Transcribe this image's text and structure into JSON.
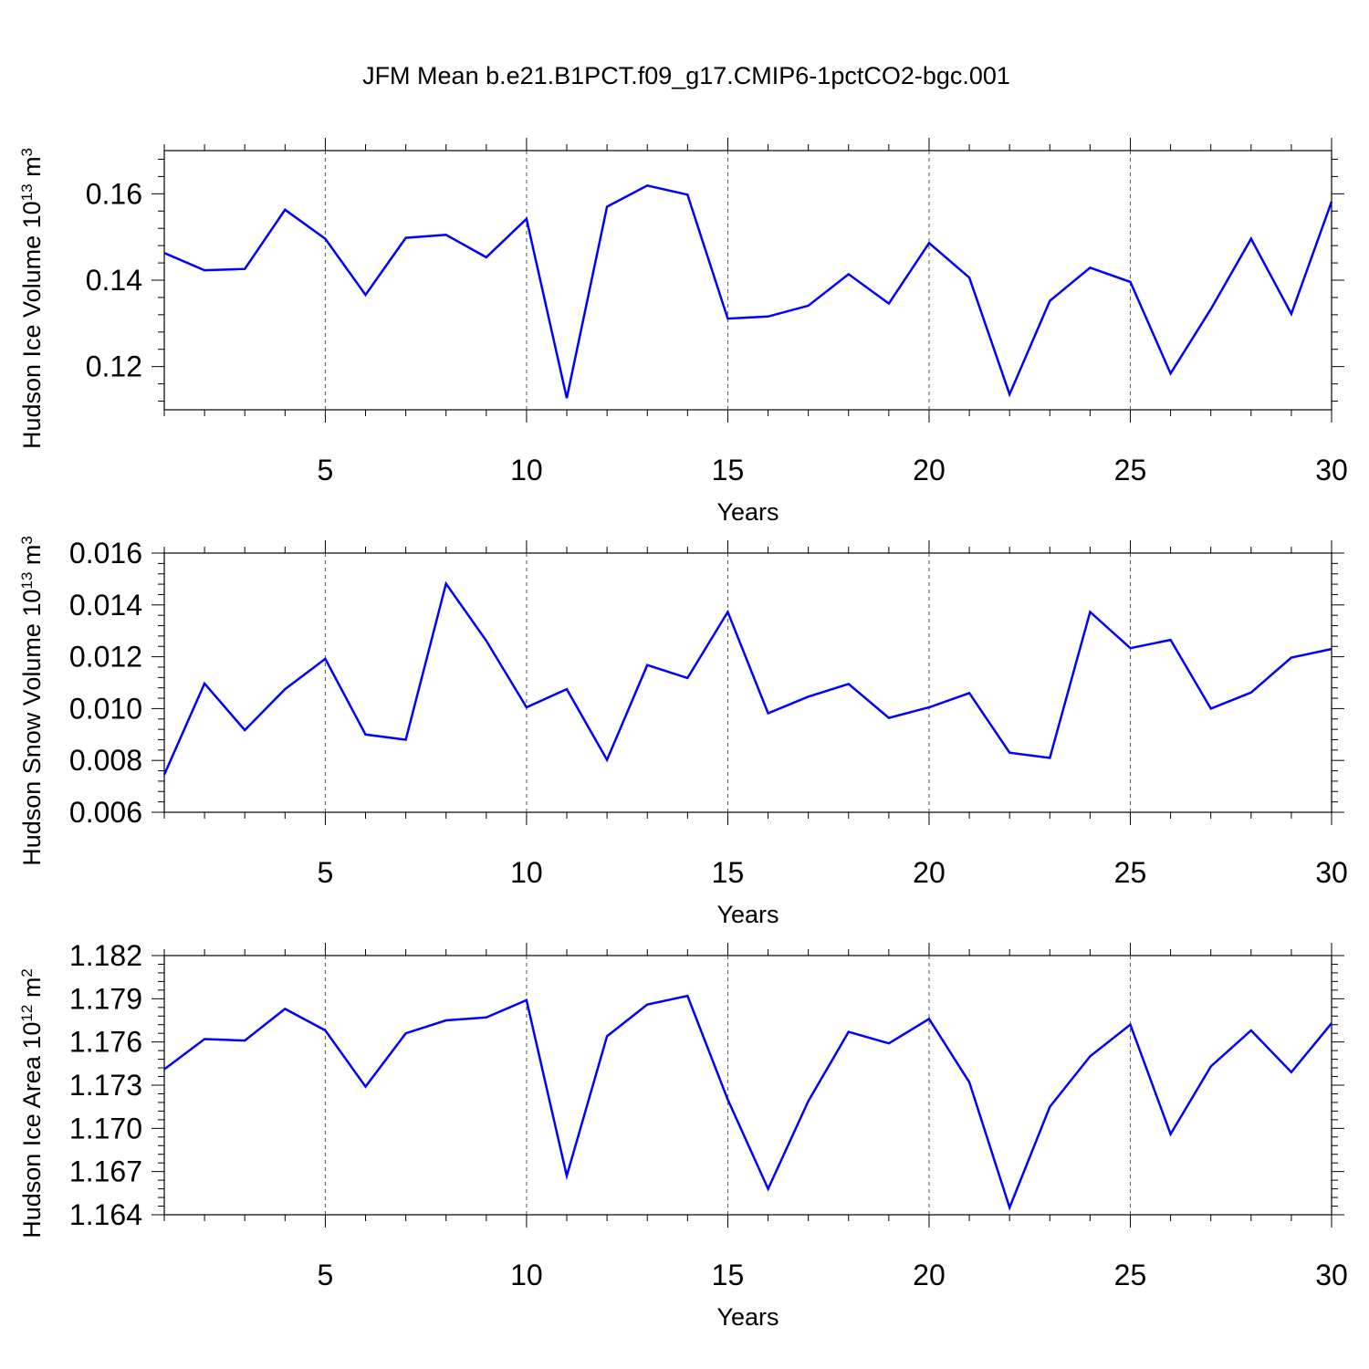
{
  "title": "JFM Mean b.e21.B1PCT.f09_g17.CMIP6-1pctCO2-bgc.001",
  "colors": {
    "line": "#0000ff",
    "axis": "#000000",
    "grid": "#555555",
    "background": "#ffffff"
  },
  "chart_data": [
    {
      "type": "line",
      "title": "JFM Mean b.e21.B1PCT.f09_g17.CMIP6-1pctCO2-bgc.001",
      "xlabel": "Years",
      "ylabel": {
        "base": "Hudson Ice Volume 10",
        "exp": "13",
        "unit": " m",
        "unit_exp": "3"
      },
      "xlim": [
        1,
        30
      ],
      "ylim": [
        0.11,
        0.17
      ],
      "x_ticks": [
        5,
        10,
        15,
        20,
        25,
        30
      ],
      "x_tick_labels": [
        "5",
        "10",
        "15",
        "20",
        "25",
        "30"
      ],
      "y_ticks": [
        0.12,
        0.14,
        0.16
      ],
      "y_tick_labels": [
        "0.12",
        "0.14",
        "0.16"
      ],
      "grid": "vertical dashed at major x ticks",
      "x": [
        1,
        2,
        3,
        4,
        5,
        6,
        7,
        8,
        9,
        10,
        11,
        12,
        13,
        14,
        15,
        16,
        17,
        18,
        19,
        20,
        21,
        22,
        23,
        24,
        25,
        26,
        27,
        28,
        29,
        30
      ],
      "values": [
        0.1463,
        0.1423,
        0.1426,
        0.1563,
        0.1496,
        0.1366,
        0.1498,
        0.1505,
        0.1453,
        0.1542,
        0.1127,
        0.157,
        0.1619,
        0.1598,
        0.1311,
        0.1316,
        0.1341,
        0.1414,
        0.1346,
        0.1486,
        0.1406,
        0.1136,
        0.1352,
        0.1429,
        0.1396,
        0.1184,
        0.1333,
        0.1496,
        0.1322,
        0.1582
      ]
    },
    {
      "type": "line",
      "xlabel": "Years",
      "ylabel": {
        "base": "Hudson Snow Volume 10",
        "exp": "13",
        "unit": " m",
        "unit_exp": "3"
      },
      "xlim": [
        1,
        30
      ],
      "ylim": [
        0.006,
        0.016
      ],
      "x_ticks": [
        5,
        10,
        15,
        20,
        25,
        30
      ],
      "x_tick_labels": [
        "5",
        "10",
        "15",
        "20",
        "25",
        "30"
      ],
      "y_ticks": [
        0.006,
        0.008,
        0.01,
        0.012,
        0.014,
        0.016
      ],
      "y_tick_labels": [
        "0.006",
        "0.008",
        "0.010",
        "0.012",
        "0.014",
        "0.016"
      ],
      "grid": "vertical dashed at major x ticks",
      "x": [
        1,
        2,
        3,
        4,
        5,
        6,
        7,
        8,
        9,
        10,
        11,
        12,
        13,
        14,
        15,
        16,
        17,
        18,
        19,
        20,
        21,
        22,
        23,
        24,
        25,
        26,
        27,
        28,
        29,
        30
      ],
      "values": [
        0.00745,
        0.01097,
        0.00917,
        0.01075,
        0.01192,
        0.009,
        0.0088,
        0.01482,
        0.01262,
        0.01005,
        0.01075,
        0.00802,
        0.01168,
        0.01118,
        0.01373,
        0.00982,
        0.01046,
        0.01095,
        0.00964,
        0.01005,
        0.0106,
        0.0083,
        0.0081,
        0.01373,
        0.01233,
        0.01265,
        0.01,
        0.01062,
        0.01197,
        0.0123
      ]
    },
    {
      "type": "line",
      "xlabel": "Years",
      "ylabel": {
        "base": "Hudson Ice Area 10",
        "exp": "12",
        "unit": " m",
        "unit_exp": "2"
      },
      "xlim": [
        1,
        30
      ],
      "ylim": [
        1.164,
        1.182
      ],
      "x_ticks": [
        5,
        10,
        15,
        20,
        25,
        30
      ],
      "x_tick_labels": [
        "5",
        "10",
        "15",
        "20",
        "25",
        "30"
      ],
      "y_ticks": [
        1.164,
        1.167,
        1.17,
        1.173,
        1.176,
        1.179,
        1.182
      ],
      "y_tick_labels": [
        "1.164",
        "1.167",
        "1.170",
        "1.173",
        "1.176",
        "1.179",
        "1.182"
      ],
      "grid": "vertical dashed at major x ticks",
      "x": [
        1,
        2,
        3,
        4,
        5,
        6,
        7,
        8,
        9,
        10,
        11,
        12,
        13,
        14,
        15,
        16,
        17,
        18,
        19,
        20,
        21,
        22,
        23,
        24,
        25,
        26,
        27,
        28,
        29,
        30
      ],
      "values": [
        1.1741,
        1.1762,
        1.1761,
        1.1783,
        1.1768,
        1.1729,
        1.1766,
        1.1775,
        1.1777,
        1.1789,
        1.1667,
        1.1764,
        1.1786,
        1.1792,
        1.172,
        1.1658,
        1.1719,
        1.1767,
        1.1759,
        1.1776,
        1.1732,
        1.1645,
        1.1715,
        1.175,
        1.1772,
        1.1696,
        1.1743,
        1.1768,
        1.1739,
        1.1773
      ]
    }
  ]
}
